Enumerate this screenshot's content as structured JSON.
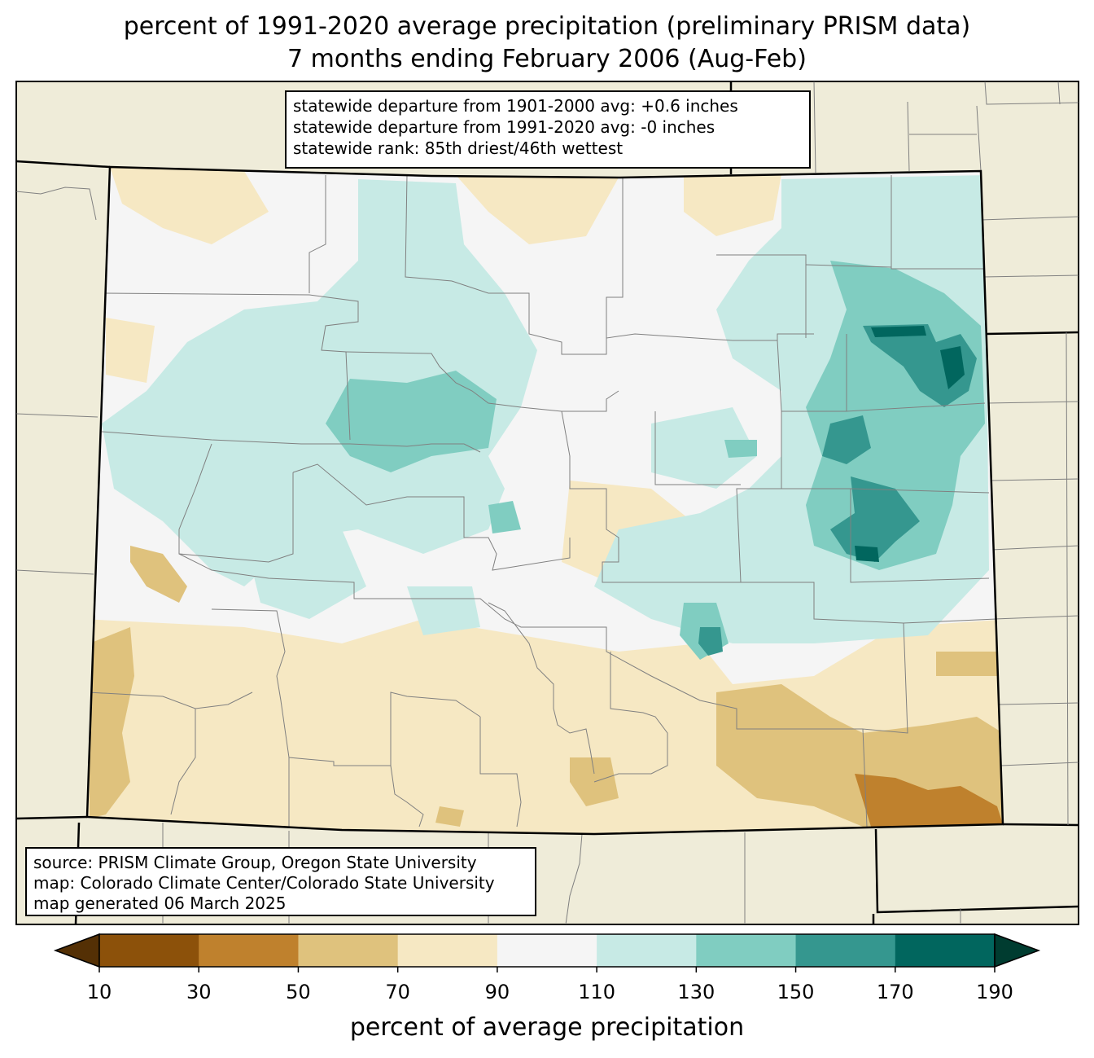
{
  "title": {
    "line1": "percent of 1991-2020 average precipitation (preliminary PRISM data)",
    "line2": "7 months ending February 2006 (Aug-Feb)"
  },
  "stats_box": {
    "line1": "statewide departure from 1901-2000 avg: +0.6 inches",
    "line2": "statewide departure from 1991-2020 avg: -0 inches",
    "line3": "statewide rank: 85th driest/46th wettest"
  },
  "source_box": {
    "line1": "source: PRISM Climate Group, Oregon State University",
    "line2": "map: Colorado Climate Center/Colorado State University",
    "line3": "map generated 06 March 2025"
  },
  "colorbar": {
    "label": "percent of average precipitation",
    "ticks": [
      "10",
      "30",
      "50",
      "70",
      "90",
      "110",
      "130",
      "150",
      "170",
      "190"
    ],
    "under_color": "#543005",
    "over_color": "#003c30",
    "colors": [
      "#8c510a",
      "#bf812d",
      "#dfc27d",
      "#f6e8c3",
      "#f5f5f5",
      "#c7eae5",
      "#80cdc1",
      "#35978f",
      "#01665e"
    ],
    "bins": [
      "10-30",
      "30-50",
      "50-70",
      "70-90",
      "90-110",
      "110-130",
      "130-150",
      "150-170",
      "170-190"
    ]
  },
  "colors": {
    "neighbor_land": "#efecd9",
    "state_border": "#000000",
    "county_line": "#808080"
  }
}
